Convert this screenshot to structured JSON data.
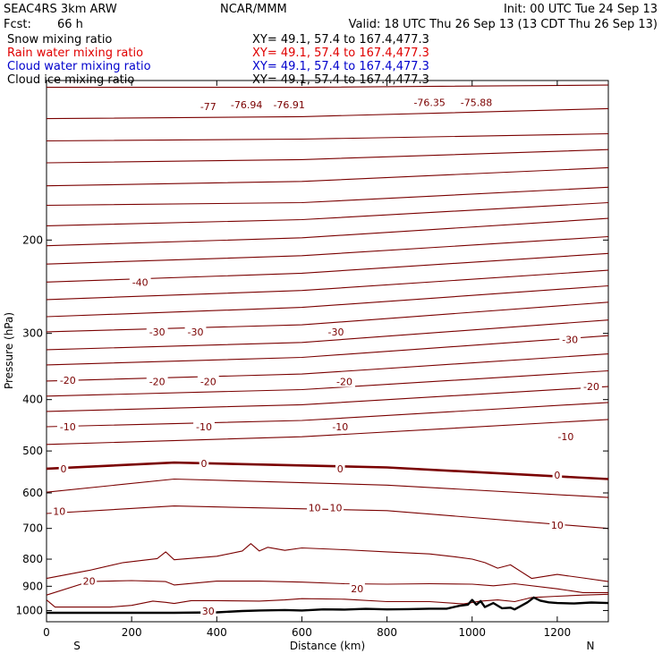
{
  "header": {
    "model": "SEAC4RS  3km ARW",
    "forecast_label": "Fcst:",
    "forecast_value": "66 h",
    "center": "NCAR/MMM",
    "init": "Init: 00 UTC Tue 24 Sep 13",
    "valid": "Valid: 18 UTC Thu 26 Sep 13 (13 CDT Thu 26 Sep 13)"
  },
  "fields": [
    {
      "name": "Snow mixing ratio",
      "xy": "XY=  49.1, 57.4 to 167.4,477.3",
      "color": "#000000"
    },
    {
      "name": "Rain water mixing ratio",
      "xy": "XY=  49.1, 57.4 to 167.4,477.3",
      "color": "#e00000"
    },
    {
      "name": "Cloud water mixing ratio",
      "xy": "XY=  49.1, 57.4 to 167.4,477.3",
      "color": "#0000cc"
    },
    {
      "name": "Cloud ice mixing ratio",
      "xy": "XY=  49.1, 57.4 to 167.4,477.3",
      "color": "#000000"
    }
  ],
  "chart_data": {
    "type": "line",
    "xlabel": "Distance (km)",
    "ylabel": "Pressure (hPa)",
    "xlim": [
      0,
      1320
    ],
    "ylim": [
      1050,
      100
    ],
    "y_scale": "log",
    "x_ticks": [
      0,
      200,
      400,
      600,
      800,
      1000,
      1200
    ],
    "y_ticks": [
      200,
      300,
      400,
      500,
      600,
      700,
      800,
      900,
      1000
    ],
    "x_tick_labels": [
      "0",
      "200",
      "400",
      "600",
      "800",
      "1000",
      "1200"
    ],
    "y_tick_labels": [
      "200",
      "300",
      "400",
      "500",
      "600",
      "700",
      "800",
      "900",
      "1000"
    ],
    "left_end_label": "S",
    "right_end_label": "N",
    "contour_color": "#7a0000",
    "contours_upper": [
      {
        "x": [
          0,
          600,
          1320
        ],
        "y": [
          103,
          103,
          102
        ]
      },
      {
        "x": [
          0,
          600,
          1320
        ],
        "y": [
          118,
          117,
          113
        ]
      },
      {
        "x": [
          0,
          600,
          1320
        ],
        "y": [
          130,
          129,
          126
        ]
      },
      {
        "x": [
          0,
          600,
          1320
        ],
        "y": [
          143,
          141,
          135
        ]
      },
      {
        "x": [
          0,
          600,
          1320
        ],
        "y": [
          158,
          155,
          146
        ]
      },
      {
        "x": [
          0,
          600,
          1320
        ],
        "y": [
          172,
          170,
          159
        ]
      },
      {
        "x": [
          0,
          600,
          1320
        ],
        "y": [
          188,
          183,
          170
        ]
      },
      {
        "x": [
          0,
          600,
          1320
        ],
        "y": [
          205,
          198,
          182
        ]
      },
      {
        "x": [
          0,
          600,
          1320
        ],
        "y": [
          222,
          214,
          197
        ]
      },
      {
        "x": [
          0,
          600,
          1320
        ],
        "y": [
          240,
          231,
          212
        ]
      },
      {
        "x": [
          0,
          600,
          1320
        ],
        "y": [
          259,
          249,
          228
        ]
      },
      {
        "x": [
          0,
          600,
          1320
        ],
        "y": [
          279,
          268,
          244
        ]
      },
      {
        "x": [
          0,
          600,
          1320
        ],
        "y": [
          298,
          289,
          262
        ]
      },
      {
        "x": [
          0,
          600,
          1320
        ],
        "y": [
          322,
          312,
          283
        ]
      },
      {
        "x": [
          0,
          600,
          1320
        ],
        "y": [
          344,
          333,
          303
        ]
      },
      {
        "x": [
          0,
          600,
          1320
        ],
        "y": [
          369,
          358,
          328
        ]
      },
      {
        "x": [
          0,
          600,
          1320
        ],
        "y": [
          394,
          383,
          353
        ]
      },
      {
        "x": [
          0,
          600,
          1320
        ],
        "y": [
          421,
          409,
          378
        ]
      },
      {
        "x": [
          0,
          600,
          1320
        ],
        "y": [
          450,
          438,
          405
        ]
      },
      {
        "x": [
          0,
          600,
          1320
        ],
        "y": [
          486,
          470,
          436
        ]
      },
      {
        "x": [
          0,
          300,
          800,
          1320
        ],
        "y": [
          540,
          526,
          537,
          565
        ]
      },
      {
        "x": [
          0,
          300,
          800,
          1320
        ],
        "y": [
          598,
          565,
          580,
          612
        ]
      },
      {
        "x": [
          0,
          300,
          800,
          1320
        ],
        "y": [
          656,
          635,
          648,
          700
        ]
      }
    ],
    "contour_labels": [
      {
        "text": "-77",
        "x": 380,
        "y": 112
      },
      {
        "text": "-76.94",
        "x": 470,
        "y": 111
      },
      {
        "text": "-76.91",
        "x": 570,
        "y": 111
      },
      {
        "text": "-76.35",
        "x": 900,
        "y": 110
      },
      {
        "text": "-75.88",
        "x": 1010,
        "y": 110
      },
      {
        "text": "-40",
        "x": 220,
        "y": 240
      },
      {
        "text": "-30",
        "x": 260,
        "y": 298
      },
      {
        "text": "-30",
        "x": 350,
        "y": 298
      },
      {
        "text": "-30",
        "x": 680,
        "y": 298
      },
      {
        "text": "-30",
        "x": 1230,
        "y": 308
      },
      {
        "text": "-20",
        "x": 50,
        "y": 368
      },
      {
        "text": "-20",
        "x": 260,
        "y": 370
      },
      {
        "text": "-20",
        "x": 380,
        "y": 370
      },
      {
        "text": "-20",
        "x": 700,
        "y": 370
      },
      {
        "text": "-20",
        "x": 1280,
        "y": 378
      },
      {
        "text": "-10",
        "x": 50,
        "y": 450
      },
      {
        "text": "-10",
        "x": 370,
        "y": 450
      },
      {
        "text": "-10",
        "x": 690,
        "y": 450
      },
      {
        "text": "-10",
        "x": 1220,
        "y": 470
      },
      {
        "text": "0",
        "x": 40,
        "y": 540
      },
      {
        "text": "0",
        "x": 370,
        "y": 528
      },
      {
        "text": "0",
        "x": 690,
        "y": 540
      },
      {
        "text": "0",
        "x": 1200,
        "y": 555
      },
      {
        "text": "10",
        "x": 30,
        "y": 650
      },
      {
        "text": "10",
        "x": 630,
        "y": 640
      },
      {
        "text": "10",
        "x": 680,
        "y": 640
      },
      {
        "text": "10",
        "x": 1200,
        "y": 690
      },
      {
        "text": "20",
        "x": 100,
        "y": 880
      },
      {
        "text": "20",
        "x": 730,
        "y": 910
      },
      {
        "text": "30",
        "x": 380,
        "y": 1003
      }
    ],
    "contour_800_line": {
      "x": [
        0,
        100,
        180,
        260,
        280,
        300,
        400,
        460,
        480,
        500,
        520,
        560,
        600,
        700,
        800,
        900,
        960,
        1000,
        1030,
        1060,
        1090,
        1140,
        1200,
        1260,
        1320
      ],
      "y": [
        870,
        840,
        812,
        798,
        775,
        802,
        790,
        772,
        748,
        772,
        760,
        770,
        762,
        768,
        775,
        782,
        792,
        800,
        812,
        832,
        820,
        870,
        855,
        868,
        882
      ]
    },
    "contour_20_line": {
      "x": [
        0,
        100,
        200,
        280,
        300,
        400,
        500,
        600,
        700,
        800,
        900,
        1000,
        1050,
        1100,
        1200,
        1260,
        1320
      ],
      "y": [
        935,
        882,
        878,
        882,
        895,
        880,
        880,
        884,
        890,
        892,
        890,
        892,
        898,
        890,
        910,
        925,
        925
      ]
    },
    "contour_30_line": {
      "x": [
        0,
        20,
        60,
        100,
        150,
        200,
        250,
        280,
        300,
        340,
        400,
        500,
        560,
        600,
        700,
        800,
        900,
        980,
        1020,
        1060,
        1100,
        1140,
        1200,
        1260,
        1320
      ],
      "y": [
        955,
        985,
        985,
        985,
        985,
        978,
        960,
        965,
        970,
        958,
        958,
        960,
        955,
        950,
        952,
        962,
        962,
        972,
        960,
        955,
        962,
        945,
        940,
        935,
        932
      ]
    },
    "terrain": {
      "x": [
        0,
        40,
        100,
        200,
        300,
        400,
        460,
        500,
        560,
        600,
        650,
        700,
        750,
        800,
        850,
        900,
        940,
        970,
        990,
        1000,
        1010,
        1020,
        1030,
        1050,
        1070,
        1090,
        1100,
        1110,
        1130,
        1145,
        1160,
        1180,
        1200,
        1240,
        1280,
        1320
      ],
      "y": [
        1010,
        1010,
        1010,
        1010,
        1010,
        1008,
        1002,
        1000,
        998,
        1000,
        995,
        996,
        993,
        995,
        994,
        992,
        992,
        980,
        975,
        955,
        975,
        960,
        985,
        968,
        990,
        988,
        995,
        985,
        965,
        945,
        958,
        965,
        968,
        970,
        966,
        968
      ]
    }
  }
}
